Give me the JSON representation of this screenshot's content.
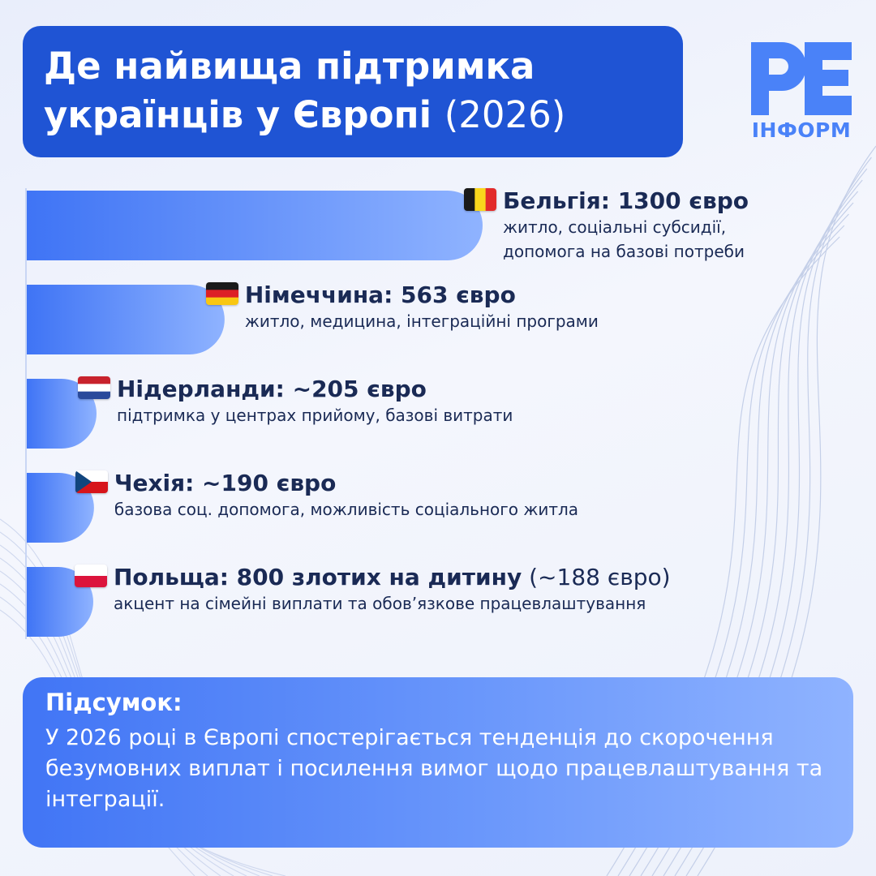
{
  "title": {
    "line1": "Де найвища підтримка",
    "line2_bold": "українців у Європі",
    "line2_light": "(2026)"
  },
  "logo": {
    "mark": "РЕ",
    "text": "ІНФОРМ",
    "color": "#4a82f8"
  },
  "colors": {
    "title_bg": "#1f54d4",
    "bar_start": "#3f74f5",
    "bar_end": "#8fb3ff",
    "text_dark": "#1a2a55"
  },
  "chart_data": {
    "type": "bar",
    "orientation": "horizontal",
    "unit": "євро",
    "categories": [
      "Бельгія",
      "Німеччина",
      "Нідерланди",
      "Чехія",
      "Польща"
    ],
    "values": [
      1300,
      563,
      205,
      190,
      188
    ],
    "items": [
      {
        "country": "Бельгія",
        "flag": "belgium-flag",
        "value": 1300,
        "heading": "Бельгія: 1300 євро",
        "heading_extra": "",
        "desc_lines": [
          "житло, соціальні субсидії,",
          "допомога на базові потреби"
        ]
      },
      {
        "country": "Німеччина",
        "flag": "germany-flag",
        "value": 563,
        "heading": "Німеччина: 563 євро",
        "heading_extra": "",
        "desc_lines": [
          "житло, медицина, інтеграційні програми"
        ]
      },
      {
        "country": "Нідерланди",
        "flag": "netherlands-flag",
        "value": 205,
        "heading": "Нідерланди: ~205 євро",
        "heading_extra": "",
        "desc_lines": [
          "підтримка у центрах прийому, базові витрати"
        ]
      },
      {
        "country": "Чехія",
        "flag": "czechia-flag",
        "value": 190,
        "heading": "Чехія: ~190 євро",
        "heading_extra": "",
        "desc_lines": [
          "базова соц. допомога, можливість соціального житла"
        ]
      },
      {
        "country": "Польща",
        "flag": "poland-flag",
        "value": 188,
        "heading": "Польща: 800 злотих на дитину",
        "heading_extra": "(~188 євро)",
        "desc_lines": [
          "акцент на сімейні виплати та обов’язкове працевлаштування"
        ]
      }
    ]
  },
  "summary": {
    "title": "Підсумок:",
    "text": "У 2026 році в Європі спостерігається тенденція до скорочення безумовних виплат і посилення вимог щодо працевлаштування та інтеграції."
  }
}
